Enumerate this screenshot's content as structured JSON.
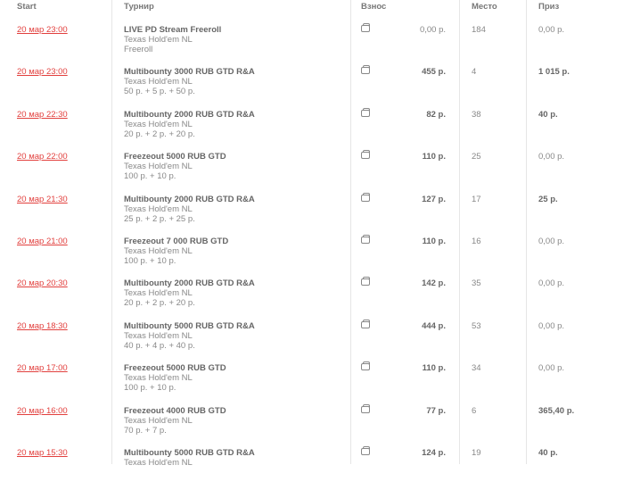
{
  "header": {
    "start": "Start",
    "tournament": "Турнир",
    "buyin": "Взнос",
    "place": "Место",
    "prize": "Приз"
  },
  "rows": [
    {
      "date": "20 мар 23:00",
      "name": "LIVE PD Stream Freeroll",
      "game": "Texas Hold'em NL",
      "structure": "Freeroll",
      "buyin": "0,00 р.",
      "place": "184",
      "prize": "0,00 р."
    },
    {
      "date": "20 мар 23:00",
      "name": "Multibounty 3000 RUB GTD R&A",
      "game": "Texas Hold'em NL",
      "structure": "50 р. + 5 р. + 50 р.",
      "buyin": "455 р.",
      "place": "4",
      "prize": "1 015 р."
    },
    {
      "date": "20 мар 22:30",
      "name": "Multibounty 2000 RUB GTD R&A",
      "game": "Texas Hold'em NL",
      "structure": "20 р. + 2 р. + 20 р.",
      "buyin": "82 р.",
      "place": "38",
      "prize": "40 р."
    },
    {
      "date": "20 мар 22:00",
      "name": "Freezeout 5000 RUB GTD",
      "game": "Texas Hold'em NL",
      "structure": "100 р. + 10 р.",
      "buyin": "110 р.",
      "place": "25",
      "prize": "0,00 р."
    },
    {
      "date": "20 мар 21:30",
      "name": "Multibounty 2000 RUB GTD R&A",
      "game": "Texas Hold'em NL",
      "structure": "25 р. + 2 р. + 25 р.",
      "buyin": "127 р.",
      "place": "17",
      "prize": "25 р."
    },
    {
      "date": "20 мар 21:00",
      "name": "Freezeout 7 000 RUB GTD",
      "game": "Texas Hold'em NL",
      "structure": "100 р. + 10 р.",
      "buyin": "110 р.",
      "place": "16",
      "prize": "0,00 р."
    },
    {
      "date": "20 мар 20:30",
      "name": "Multibounty 2000 RUB GTD R&A",
      "game": "Texas Hold'em NL",
      "structure": "20 р. + 2 р. + 20 р.",
      "buyin": "142 р.",
      "place": "35",
      "prize": "0,00 р."
    },
    {
      "date": "20 мар 18:30",
      "name": "Multibounty 5000 RUB GTD R&A",
      "game": "Texas Hold'em NL",
      "structure": "40 р. + 4 р. + 40 р.",
      "buyin": "444 р.",
      "place": "53",
      "prize": "0,00 р."
    },
    {
      "date": "20 мар 17:00",
      "name": "Freezeout 5000 RUB GTD",
      "game": "Texas Hold'em NL",
      "structure": "100 р. + 10 р.",
      "buyin": "110 р.",
      "place": "34",
      "prize": "0,00 р."
    },
    {
      "date": "20 мар 16:00",
      "name": "Freezeout 4000 RUB GTD",
      "game": "Texas Hold'em NL",
      "structure": "70 р. + 7 р.",
      "buyin": "77 р.",
      "place": "6",
      "prize": "365,40 р."
    },
    {
      "date": "20 мар 15:30",
      "name": "Multibounty 5000 RUB GTD R&A",
      "game": "Texas Hold'em NL",
      "structure": "",
      "buyin": "124 р.",
      "place": "19",
      "prize": "40 р."
    }
  ],
  "icons": {
    "buyin": "wallet-icon"
  }
}
